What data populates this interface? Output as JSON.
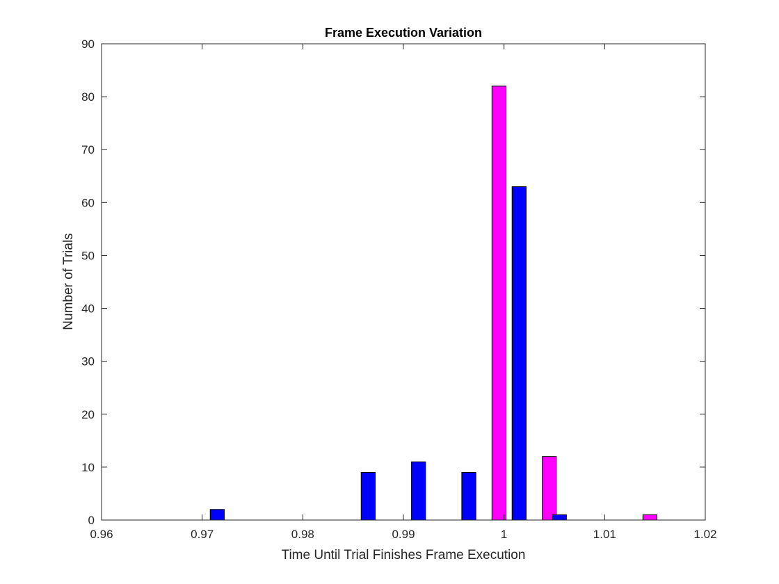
{
  "chart_data": {
    "type": "bar",
    "title": "Frame Execution Variation",
    "xlabel": "Time Until Trial Finishes Frame Execution",
    "ylabel": "Number of Trials",
    "xlim": [
      0.96,
      1.02
    ],
    "ylim": [
      0,
      90
    ],
    "x_ticks": [
      0.96,
      0.97,
      0.98,
      0.99,
      1.0,
      1.01,
      1.02
    ],
    "x_tick_labels": [
      "0.96",
      "0.97",
      "0.98",
      "0.99",
      "1",
      "1.01",
      "1.02"
    ],
    "y_ticks": [
      0,
      10,
      20,
      30,
      40,
      50,
      60,
      70,
      80,
      90
    ],
    "y_tick_labels": [
      "0",
      "10",
      "20",
      "30",
      "40",
      "50",
      "60",
      "70",
      "80",
      "90"
    ],
    "grid": false,
    "bin_width": 0.0014,
    "series": [
      {
        "color": "#ff00ff",
        "x": [
          0.9695,
          0.9745,
          0.9795,
          0.9845,
          0.9895,
          0.9945,
          0.9995,
          1.0045,
          1.0095,
          1.0145
        ],
        "values": [
          0,
          0,
          0,
          0,
          0,
          0,
          82,
          12,
          0,
          1
        ]
      },
      {
        "color": "#0000ff",
        "x": [
          0.9715,
          0.9765,
          0.9815,
          0.9865,
          0.9915,
          0.9965,
          1.0015,
          1.0055,
          1.0115,
          1.0155
        ],
        "values": [
          2,
          0,
          0,
          9,
          11,
          9,
          63,
          1,
          0,
          0
        ]
      }
    ]
  }
}
